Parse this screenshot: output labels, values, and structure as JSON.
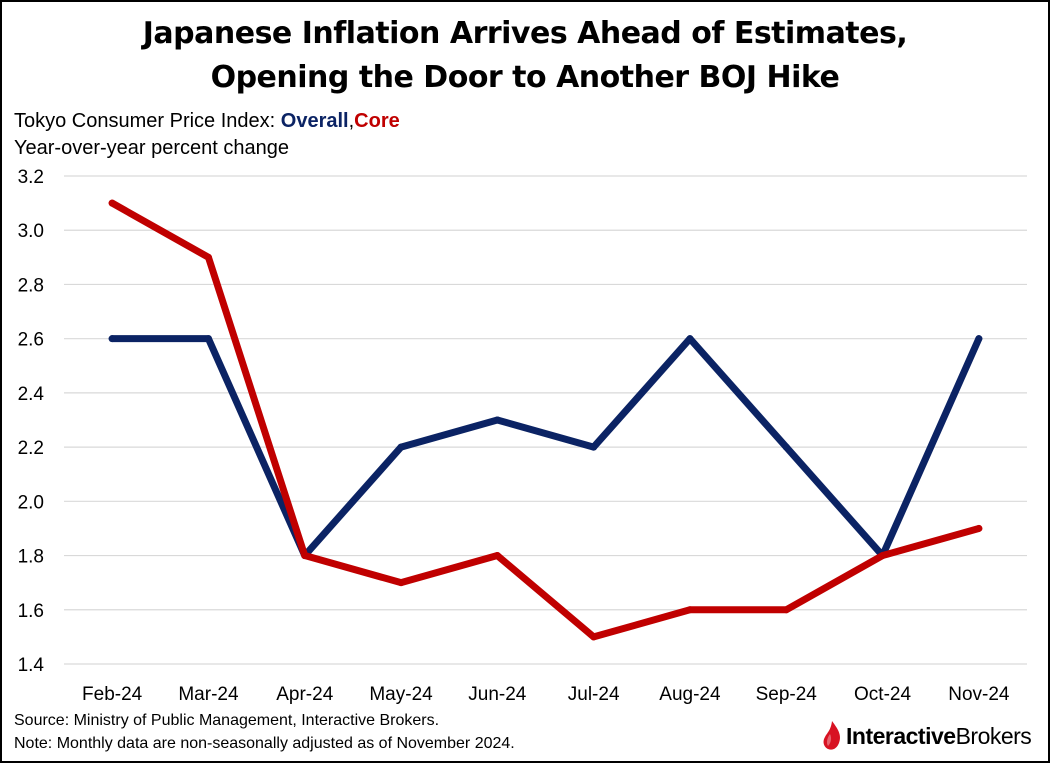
{
  "colors": {
    "overall": "#0b2364",
    "core": "#c00000",
    "grid": "#d9d9d9",
    "logo_red": "#d81222"
  },
  "subtitle": {
    "prefix": "Tokyo Consumer Price Index: ",
    "overall": "Overall",
    "comma": ",",
    "core": "Core"
  },
  "footer": {
    "source": "Source: Ministry of Public Management, Interactive Brokers.",
    "note": "Note: Monthly data are non-seasonally adjusted as of November 2024."
  },
  "logo": {
    "icon": "flame-icon",
    "text_bold": "Interactive",
    "text_regular": "Brokers"
  },
  "chart_data": {
    "type": "line",
    "title": [
      "Japanese Inflation Arrives Ahead of Estimates,",
      "Opening the Door to Another BOJ Hike"
    ],
    "ylabel": "Year-over-year percent change",
    "categories": [
      "Feb-24",
      "Mar-24",
      "Apr-24",
      "May-24",
      "Jun-24",
      "Jul-24",
      "Aug-24",
      "Sep-24",
      "Oct-24",
      "Nov-24"
    ],
    "yticks": [
      "3.2",
      "3.0",
      "2.8",
      "2.6",
      "2.4",
      "2.2",
      "2.0",
      "1.8",
      "1.6",
      "1.4"
    ],
    "ylim": [
      1.4,
      3.2
    ],
    "grid": true,
    "series": [
      {
        "name": "Overall",
        "color": "#0b2364",
        "values": [
          2.6,
          2.6,
          1.8,
          2.2,
          2.3,
          2.2,
          2.6,
          2.2,
          1.8,
          2.6
        ]
      },
      {
        "name": "Core",
        "color": "#c00000",
        "values": [
          3.1,
          2.9,
          1.8,
          1.7,
          1.8,
          1.5,
          1.6,
          1.6,
          1.8,
          1.9
        ]
      }
    ]
  }
}
